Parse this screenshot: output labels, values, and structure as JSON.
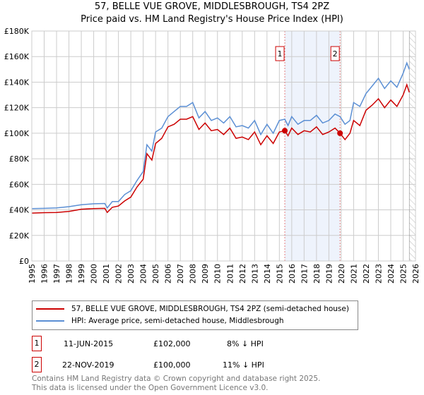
{
  "chart_data": {
    "type": "line",
    "title": "57, BELLE VUE GROVE, MIDDLESBROUGH, TS4 2PZ",
    "subtitle": "Price paid vs. HM Land Registry's House Price Index (HPI)",
    "xlim": [
      1995,
      2026
    ],
    "ylim": [
      0,
      180000
    ],
    "y_ticks": [
      {
        "v": 0,
        "label": "£0"
      },
      {
        "v": 20000,
        "label": "£20K"
      },
      {
        "v": 40000,
        "label": "£40K"
      },
      {
        "v": 60000,
        "label": "£60K"
      },
      {
        "v": 80000,
        "label": "£80K"
      },
      {
        "v": 100000,
        "label": "£100K"
      },
      {
        "v": 120000,
        "label": "£120K"
      },
      {
        "v": 140000,
        "label": "£140K"
      },
      {
        "v": 160000,
        "label": "£160K"
      },
      {
        "v": 180000,
        "label": "£180K"
      }
    ],
    "x_ticks": [
      1995,
      1996,
      1997,
      1998,
      1999,
      2000,
      2001,
      2002,
      2003,
      2004,
      2005,
      2006,
      2007,
      2008,
      2009,
      2010,
      2011,
      2012,
      2013,
      2014,
      2015,
      2016,
      2017,
      2018,
      2019,
      2020,
      2021,
      2022,
      2023,
      2024,
      2025,
      2026
    ],
    "grid": true,
    "shaded_region": [
      2015.44,
      2019.9
    ],
    "hatched_from": 2025.5,
    "series": [
      {
        "name": "57, BELLE VUE GROVE, MIDDLESBROUGH, TS4 2PZ (semi-detached house)",
        "color": "#cc0000",
        "x": [
          1995,
          1996,
          1997,
          1998,
          1999,
          2000,
          2000.9,
          2001.1,
          2001.5,
          2002,
          2002.5,
          2003,
          2003.5,
          2004,
          2004.3,
          2004.7,
          2005,
          2005.5,
          2006,
          2006.5,
          2007,
          2007.5,
          2008,
          2008.5,
          2009,
          2009.5,
          2010,
          2010.5,
          2011,
          2011.5,
          2012,
          2012.5,
          2013,
          2013.5,
          2014,
          2014.5,
          2015,
          2015.44,
          2015.7,
          2016,
          2016.5,
          2017,
          2017.5,
          2018,
          2018.5,
          2019,
          2019.5,
          2019.9,
          2020.3,
          2020.7,
          2021,
          2021.5,
          2022,
          2022.5,
          2023,
          2023.5,
          2024,
          2024.5,
          2025,
          2025.3,
          2025.5
        ],
        "y": [
          37500,
          37800,
          38000,
          38800,
          40500,
          41000,
          41200,
          38000,
          42000,
          43000,
          47000,
          50000,
          58000,
          64000,
          84000,
          79000,
          92000,
          96000,
          105000,
          107000,
          111000,
          111000,
          113000,
          103000,
          108000,
          102000,
          103000,
          99000,
          104000,
          96000,
          97000,
          95000,
          101000,
          91000,
          98000,
          92000,
          101000,
          102000,
          98000,
          104000,
          99000,
          102000,
          101000,
          105000,
          99000,
          101000,
          104000,
          100000,
          95000,
          100000,
          110000,
          106000,
          118000,
          122000,
          127000,
          120000,
          126000,
          121000,
          130000,
          138000,
          132000
        ]
      },
      {
        "name": "HPI: Average price, semi-detached house, Middlesbrough",
        "color": "#5b8fd4",
        "x": [
          1995,
          1996,
          1997,
          1998,
          1999,
          2000,
          2000.9,
          2001.1,
          2001.5,
          2002,
          2002.5,
          2003,
          2003.5,
          2004,
          2004.3,
          2004.7,
          2005,
          2005.5,
          2006,
          2006.5,
          2007,
          2007.5,
          2008,
          2008.5,
          2009,
          2009.5,
          2010,
          2010.5,
          2011,
          2011.5,
          2012,
          2012.5,
          2013,
          2013.5,
          2014,
          2014.5,
          2015,
          2015.44,
          2015.7,
          2016,
          2016.5,
          2017,
          2017.5,
          2018,
          2018.5,
          2019,
          2019.5,
          2019.9,
          2020.3,
          2020.7,
          2021,
          2021.5,
          2022,
          2022.5,
          2023,
          2023.5,
          2024,
          2024.5,
          2025,
          2025.3,
          2025.5
        ],
        "y": [
          41000,
          41200,
          41500,
          42500,
          44000,
          44800,
          45000,
          41500,
          46500,
          46500,
          52000,
          55000,
          63000,
          70000,
          91000,
          86000,
          101000,
          104000,
          113000,
          117000,
          121000,
          121000,
          124000,
          112000,
          117000,
          110000,
          112000,
          108000,
          113000,
          105000,
          106000,
          104000,
          110000,
          99000,
          107000,
          100000,
          110000,
          111000,
          106000,
          113000,
          107000,
          110000,
          110000,
          114000,
          108000,
          110000,
          115000,
          113000,
          107000,
          110000,
          124000,
          121000,
          131000,
          137000,
          143000,
          135000,
          141000,
          136000,
          147000,
          155000,
          150000
        ]
      }
    ],
    "annotations": [
      {
        "label": "1",
        "x": 2015.44,
        "y": 102000
      },
      {
        "label": "2",
        "x": 2019.9,
        "y": 100000
      }
    ]
  },
  "legend": {
    "red": "57, BELLE VUE GROVE, MIDDLESBROUGH, TS4 2PZ (semi-detached house)",
    "blue": "HPI: Average price, semi-detached house, Middlesbrough"
  },
  "transactions": [
    {
      "num": "1",
      "date": "11-JUN-2015",
      "price": "£102,000",
      "hpi": "8% ↓ HPI"
    },
    {
      "num": "2",
      "date": "22-NOV-2019",
      "price": "£100,000",
      "hpi": "11% ↓ HPI"
    }
  ],
  "footer": {
    "line1": "Contains HM Land Registry data © Crown copyright and database right 2025.",
    "line2": "This data is licensed under the Open Government Licence v3.0."
  }
}
